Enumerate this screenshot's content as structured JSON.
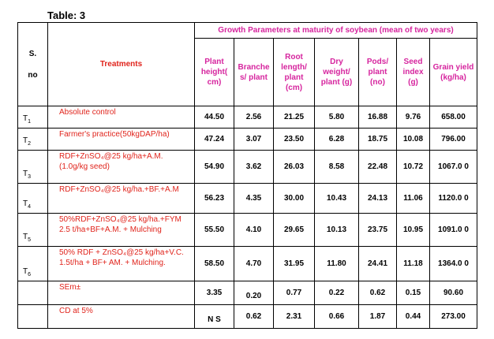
{
  "caption": "Table: 3",
  "header": {
    "sno_line1": "S.",
    "sno_line2": "no",
    "treatments": "Treatments",
    "group": "Growth Parameters at maturity of soybean (mean of two years)",
    "columns": [
      "Plant height( cm)",
      "Branche s/ plant",
      "Root length/ plant (cm)",
      "Dry weight/ plant (g)",
      "Pods/ plant (no)",
      "Seed index (g)",
      "Grain yield (kg/ha)"
    ]
  },
  "rows": [
    {
      "id": "T",
      "sub": "1",
      "treatment": "Absolute control",
      "values": [
        "44.50",
        "2.56",
        "21.25",
        "5.80",
        "16.88",
        "9.76",
        "658.00"
      ]
    },
    {
      "id": "T",
      "sub": "2",
      "treatment": "Farmer's practice(50kgDAP/ha)",
      "values": [
        "47.24",
        "3.07",
        "23.50",
        "6.28",
        "18.75",
        "10.08",
        "796.00"
      ]
    },
    {
      "id": "T",
      "sub": "3",
      "treatment": "RDF+ZnSO₄@25 kg/ha+A.M. (1.0g/kg seed)",
      "values": [
        "54.90",
        "3.62",
        "26.03",
        "8.58",
        "22.48",
        "10.72",
        "1067.0 0"
      ]
    },
    {
      "id": "T",
      "sub": "4",
      "treatment": "RDF+ZnSO₄@25 kg/ha.+BF.+A.M",
      "values": [
        "56.23",
        "4.35",
        "30.00",
        "10.43",
        "24.13",
        "11.06",
        "1120.0 0"
      ]
    },
    {
      "id": "T",
      "sub": "5",
      "treatment": "50%RDF+ZnSO₄@25 kg/ha.+FYM 2.5 t/ha+BF+A.M. + Mulching",
      "values": [
        "55.50",
        "4.10",
        "29.65",
        "10.13",
        "23.75",
        "10.95",
        "1091.0 0"
      ]
    },
    {
      "id": "T",
      "sub": "6",
      "treatment": "50% RDF + ZnSO₄@25 kg/ha+V.C. 1.5t/ha + BF+ AM. + Mulching.",
      "values": [
        "58.50",
        "4.70",
        "31.95",
        "11.80",
        "24.41",
        "11.18",
        "1364.0 0"
      ]
    },
    {
      "id": "",
      "sub": "",
      "treatment": "SEm±",
      "values": [
        "3.35",
        "0.20",
        "0.77",
        "0.22",
        "0.62",
        "0.15",
        "90.60"
      ]
    },
    {
      "id": "",
      "sub": "",
      "treatment": "CD at 5%",
      "values": [
        "N S",
        "0.62",
        "2.31",
        "0.66",
        "1.87",
        "0.44",
        "273.00"
      ]
    }
  ],
  "colors": {
    "header_magenta": "#d6249e",
    "treatment_red": "#e0241c"
  }
}
